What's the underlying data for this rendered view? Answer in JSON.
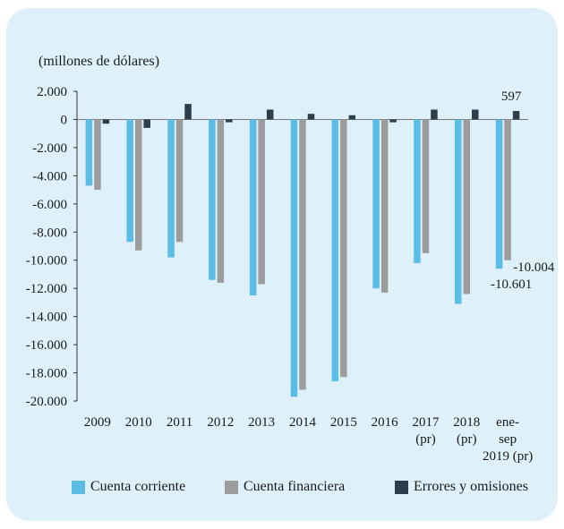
{
  "chart_data": {
    "type": "bar",
    "unit_label": "(millones de dólares)",
    "categories": [
      "2009",
      "2010",
      "2011",
      "2012",
      "2013",
      "2014",
      "2015",
      "2016",
      "2017\n(pr)",
      "2018\n(pr)",
      "ene-\nsep\n2019 (pr)"
    ],
    "series": [
      {
        "name": "Cuenta corriente",
        "color": "#5bbde6",
        "values": [
          -4700,
          -8700,
          -9800,
          -11400,
          -12500,
          -19700,
          -18600,
          -12000,
          -10200,
          -13100,
          -10601
        ]
      },
      {
        "name": "Cuenta financiera",
        "color": "#9c9c9c",
        "values": [
          -5000,
          -9300,
          -8700,
          -11600,
          -11700,
          -19200,
          -18300,
          -12300,
          -9500,
          -12400,
          -10004
        ]
      },
      {
        "name": "Errores y omisiones",
        "color": "#2b3e4c",
        "values": [
          -300,
          -600,
          1100,
          -200,
          700,
          400,
          300,
          -200,
          700,
          700,
          597
        ]
      }
    ],
    "ylim": [
      -20000,
      2000
    ],
    "yticks": [
      2000,
      0,
      -2000,
      -4000,
      -6000,
      -8000,
      -10000,
      -12000,
      -14000,
      -16000,
      -18000,
      -20000
    ],
    "ytick_labels": [
      "2.000",
      "0",
      "-2.000",
      "-4.000",
      "-6.000",
      "-8.000",
      "-10.000",
      "-12.000",
      "-14.000",
      "-16.000",
      "-18.000",
      "-20.000"
    ],
    "annotations": [
      "597",
      "-10.004",
      "-10.601"
    ],
    "grid": false,
    "legend_position": "bottom"
  }
}
